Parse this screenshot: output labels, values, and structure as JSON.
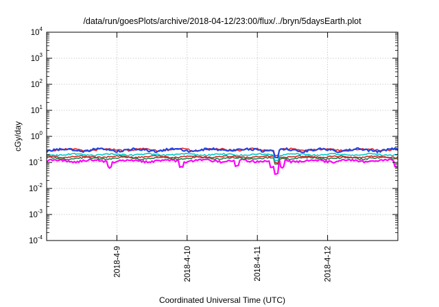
{
  "chart_data": {
    "type": "line",
    "title": "/data/run/goesPlots/archive/2018-04-12/23:00/flux/../bryn/5daysEarth.plot",
    "xlabel": "Coordinated Universal Time (UTC)",
    "ylabel": "cGy/day",
    "yscale": "log",
    "ylim": [
      0.0001,
      10000
    ],
    "y_ticks": [
      {
        "base": "10",
        "exp": "4"
      },
      {
        "base": "10",
        "exp": "3"
      },
      {
        "base": "10",
        "exp": "2"
      },
      {
        "base": "10",
        "exp": "1"
      },
      {
        "base": "10",
        "exp": "0"
      },
      {
        "base": "10",
        "exp": "-1"
      },
      {
        "base": "10",
        "exp": "-2"
      },
      {
        "base": "10",
        "exp": "-3"
      },
      {
        "base": "10",
        "exp": "-4"
      }
    ],
    "xlim": [
      "2018-04-08 00:00",
      "2018-04-13 00:00"
    ],
    "x_ticks": [
      "2018-4-9",
      "2018-4-10",
      "2018-4-11",
      "2018-4-12"
    ],
    "grid": true,
    "legend": "none",
    "series": [
      {
        "color": "#ff00ff",
        "base": 0.115,
        "amp": 0.02,
        "dips": [
          [
            0.18,
            0.06
          ],
          [
            0.385,
            0.06
          ],
          [
            0.54,
            0.07
          ],
          [
            0.64,
            0.06
          ],
          [
            0.655,
            0.032
          ],
          [
            0.67,
            0.06
          ],
          [
            0.997,
            0.06
          ]
        ]
      },
      {
        "color": "#1f7f3f",
        "base": 0.145,
        "amp": 0.02,
        "dips": [
          [
            0.655,
            0.08
          ]
        ]
      },
      {
        "color": "#cc2222",
        "base": 0.165,
        "amp": 0.02,
        "dips": [
          [
            0.655,
            0.09
          ]
        ]
      },
      {
        "color": "#00c8c8",
        "base": 0.2,
        "amp": 0.025,
        "dips": [
          [
            0.655,
            0.11
          ]
        ]
      },
      {
        "color": "#ee2222",
        "base": 0.31,
        "amp": 0.05,
        "dips": [
          [
            0.655,
            0.18
          ]
        ]
      },
      {
        "color": "#2244dd",
        "base": 0.3,
        "amp": 0.06,
        "dips": [
          [
            0.655,
            0.15
          ]
        ]
      }
    ],
    "axis_color": "#000000",
    "grid_color": "#b0b0b0"
  }
}
